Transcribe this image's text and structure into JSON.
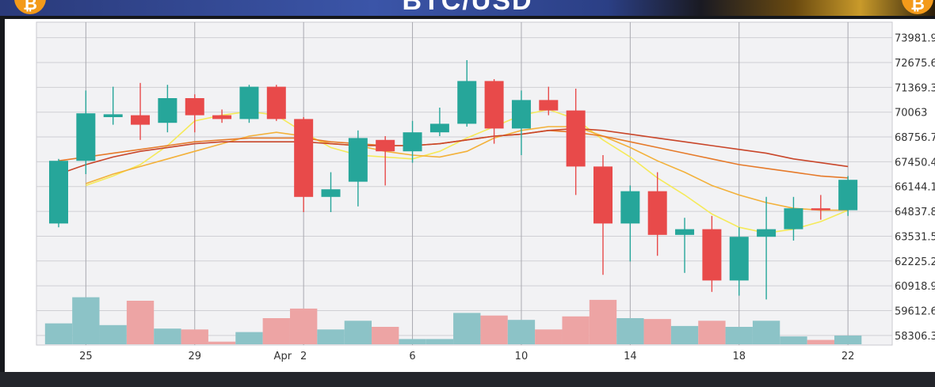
{
  "banner": {
    "title": "BTC/USD",
    "coin_glyph": "₿",
    "colors": {
      "coin": "#f39a1a",
      "banner_blue": "#3b55a8",
      "banner_gold": "#c99a2a"
    }
  },
  "chart_data": {
    "type": "candlestick",
    "title": "BTC/USD",
    "xlabel": "",
    "ylabel": "",
    "ylim": [
      57800,
      74800
    ],
    "y_ticks": [
      73981.9,
      72675.6,
      71369.3,
      70063,
      68756.7,
      67450.4,
      66144.1,
      64837.8,
      63531.5,
      62225.2,
      60918.9,
      59612.6,
      58306.3
    ],
    "y_tick_labels": [
      "73981.9",
      "72675.6",
      "71369.3",
      "70063",
      "68756.7",
      "67450.4",
      "66144.1",
      "64837.8",
      "63531.5",
      "62225.2",
      "60918.9",
      "59612.6",
      "58306.3"
    ],
    "x_tick_labels": [
      {
        "index": 1,
        "label": "25"
      },
      {
        "index": 5,
        "label": "29"
      },
      {
        "index": 8,
        "label": "Apr"
      },
      {
        "index": 9,
        "label": "2"
      },
      {
        "index": 13,
        "label": "6"
      },
      {
        "index": 17,
        "label": "10"
      },
      {
        "index": 21,
        "label": "14"
      },
      {
        "index": 25,
        "label": "18"
      },
      {
        "index": 29,
        "label": "22"
      }
    ],
    "grid": true,
    "x_offset_days": -0.03,
    "colors": {
      "up": "#26a69a",
      "down": "#e84a4a",
      "volume_up": "#8cc3c7",
      "volume_down": "#eda4a4",
      "ma_fast": "#f5ea5a",
      "ma_mid": "#f3b13a",
      "ma_slow_1": "#e67a2a",
      "ma_slow_2": "#c9462a"
    },
    "candles": [
      {
        "o": 64200,
        "h": 67600,
        "l": 64000,
        "c": 67500
      },
      {
        "o": 67500,
        "h": 71200,
        "l": 66800,
        "c": 70000
      },
      {
        "o": 69800,
        "h": 71400,
        "l": 69400,
        "c": 69950
      },
      {
        "o": 69900,
        "h": 71600,
        "l": 68600,
        "c": 69400
      },
      {
        "o": 69500,
        "h": 71500,
        "l": 69000,
        "c": 70800
      },
      {
        "o": 70800,
        "h": 71000,
        "l": 69000,
        "c": 69900
      },
      {
        "o": 69900,
        "h": 70200,
        "l": 69500,
        "c": 69700
      },
      {
        "o": 69700,
        "h": 71500,
        "l": 69500,
        "c": 71400
      },
      {
        "o": 71400,
        "h": 71500,
        "l": 69600,
        "c": 69700
      },
      {
        "o": 69700,
        "h": 69800,
        "l": 64800,
        "c": 65600
      },
      {
        "o": 65600,
        "h": 66900,
        "l": 64800,
        "c": 66000
      },
      {
        "o": 66400,
        "h": 69100,
        "l": 65100,
        "c": 68700
      },
      {
        "o": 68600,
        "h": 68800,
        "l": 66200,
        "c": 68000
      },
      {
        "o": 68000,
        "h": 69600,
        "l": 67400,
        "c": 69000
      },
      {
        "o": 69000,
        "h": 70300,
        "l": 68800,
        "c": 69450
      },
      {
        "o": 69450,
        "h": 72800,
        "l": 69300,
        "c": 71700
      },
      {
        "o": 71700,
        "h": 71800,
        "l": 68400,
        "c": 69200
      },
      {
        "o": 69200,
        "h": 71200,
        "l": 67800,
        "c": 70700
      },
      {
        "o": 70700,
        "h": 71400,
        "l": 69900,
        "c": 70150
      },
      {
        "o": 70150,
        "h": 71300,
        "l": 65700,
        "c": 67200
      },
      {
        "o": 67200,
        "h": 67800,
        "l": 61500,
        "c": 64200
      },
      {
        "o": 64200,
        "h": 66200,
        "l": 62200,
        "c": 65900
      },
      {
        "o": 65900,
        "h": 66900,
        "l": 62500,
        "c": 63600
      },
      {
        "o": 63600,
        "h": 64500,
        "l": 61600,
        "c": 63900
      },
      {
        "o": 63900,
        "h": 64600,
        "l": 60600,
        "c": 61200
      },
      {
        "o": 61200,
        "h": 64000,
        "l": 60400,
        "c": 63500
      },
      {
        "o": 63500,
        "h": 65600,
        "l": 60200,
        "c": 63900
      },
      {
        "o": 63900,
        "h": 65600,
        "l": 63300,
        "c": 65000
      },
      {
        "o": 65000,
        "h": 65700,
        "l": 64400,
        "c": 64900
      },
      {
        "o": 64900,
        "h": 66700,
        "l": 64600,
        "c": 66500
      }
    ],
    "volume": [
      0.24,
      0.54,
      0.22,
      0.5,
      0.18,
      0.17,
      0.03,
      0.14,
      0.3,
      0.41,
      0.17,
      0.27,
      0.2,
      0.06,
      0.06,
      0.36,
      0.33,
      0.28,
      0.17,
      0.32,
      0.51,
      0.3,
      0.29,
      0.21,
      0.27,
      0.2,
      0.27,
      0.09,
      0.05,
      0.1
    ],
    "ma_series": [
      {
        "name": "",
        "color": "#f5ea5a",
        "values": [
          null,
          66200,
          66700,
          67300,
          68300,
          69600,
          69900,
          70100,
          69900,
          69000,
          68200,
          67800,
          67700,
          67600,
          68000,
          68700,
          69300,
          69900,
          70200,
          69700,
          68600,
          67700,
          66600,
          65700,
          64700,
          64000,
          63700,
          63900,
          64300,
          64900
        ]
      },
      {
        "name": "",
        "color": "#f3b13a",
        "values": [
          null,
          66300,
          66800,
          67200,
          67600,
          68000,
          68400,
          68800,
          69000,
          68800,
          68400,
          68300,
          68000,
          67800,
          67700,
          68000,
          68700,
          69100,
          69300,
          69300,
          68800,
          68200,
          67500,
          66900,
          66200,
          65700,
          65300,
          65000,
          64900,
          64900
        ]
      },
      {
        "name": "",
        "color": "#e67a2a",
        "values": [
          67500,
          67700,
          67900,
          68100,
          68300,
          68500,
          68600,
          68700,
          68700,
          68700,
          68500,
          68400,
          68300,
          68300,
          68400,
          68600,
          68800,
          68900,
          69100,
          69000,
          68800,
          68500,
          68200,
          67900,
          67600,
          67300,
          67100,
          66900,
          66700,
          66600
        ]
      },
      {
        "name": "",
        "color": "#c9462a",
        "values": [
          66800,
          67300,
          67700,
          68000,
          68200,
          68400,
          68500,
          68500,
          68500,
          68500,
          68400,
          68300,
          68300,
          68300,
          68400,
          68600,
          68800,
          68900,
          69100,
          69200,
          69100,
          68900,
          68700,
          68500,
          68300,
          68100,
          67900,
          67600,
          67400,
          67200
        ]
      }
    ]
  }
}
